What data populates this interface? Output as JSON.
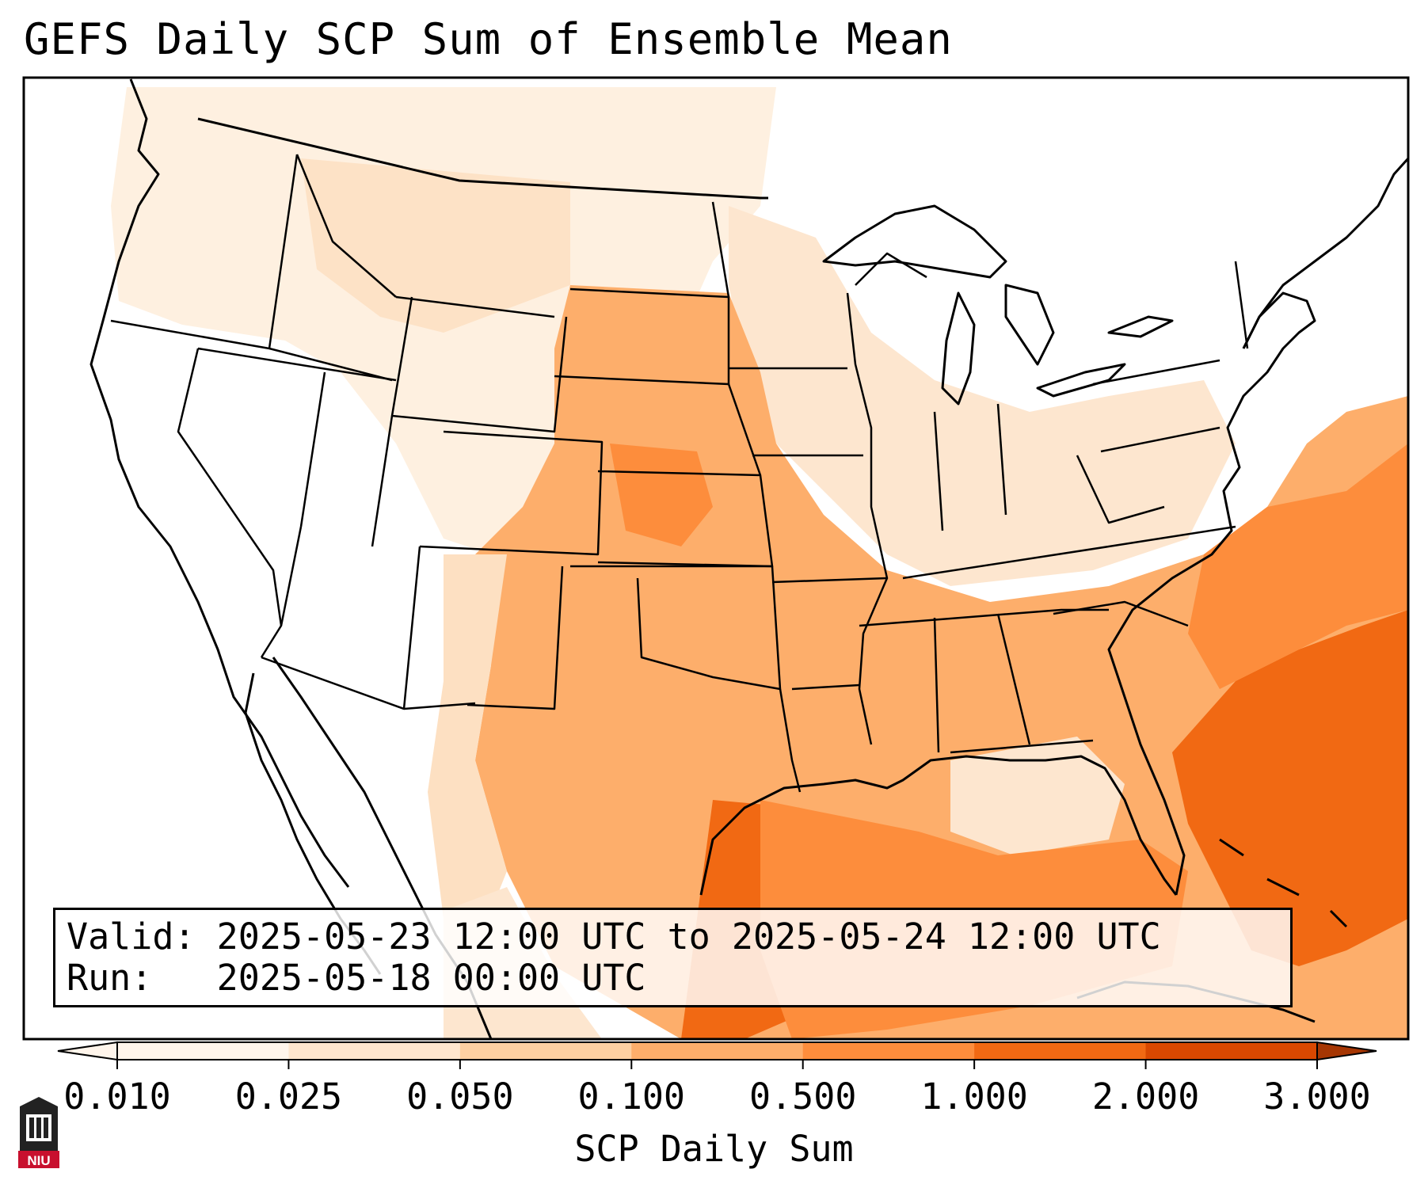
{
  "title": "GEFS Daily SCP Sum of Ensemble Mean",
  "info": {
    "valid_label": "Valid:",
    "valid_value": "2025-05-23 12:00 UTC to 2025-05-24 12:00 UTC",
    "run_label": "Run:",
    "run_value": "2025-05-18 00:00 UTC"
  },
  "colorbar": {
    "label": "SCP Daily Sum",
    "ticks": [
      "0.010",
      "0.025",
      "0.050",
      "0.100",
      "0.500",
      "1.000",
      "2.000",
      "3.000"
    ],
    "colors": [
      "#fff5eb",
      "#fee6ce",
      "#fdd0a2",
      "#fdae6b",
      "#fd8d3c",
      "#f16913",
      "#d94801",
      "#a63603"
    ],
    "extend": "both"
  },
  "logo": {
    "text": "NIU",
    "color": "#c8102e"
  }
}
